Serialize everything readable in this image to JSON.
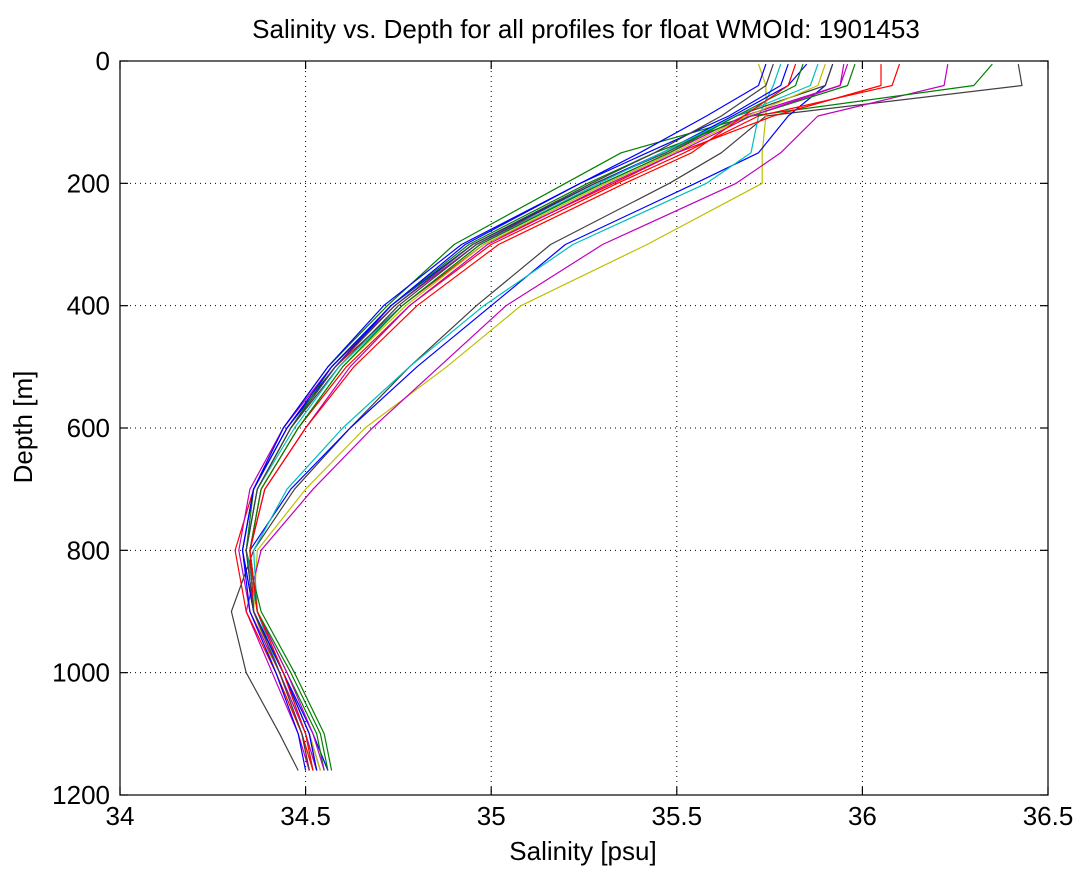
{
  "chart_data": {
    "type": "line",
    "title": "Salinity vs. Depth for all profiles for float WMOId: 1901453",
    "xlabel": "Salinity [psu]",
    "ylabel": "Depth [m]",
    "xlim": [
      34,
      36.5
    ],
    "ylim": [
      0,
      1200
    ],
    "y_reversed": true,
    "grid": true,
    "grid_style": "dotted",
    "legend": "none",
    "x_tick_labels": [
      "34",
      "34.5",
      "35",
      "35.5",
      "36",
      "36.5"
    ],
    "y_tick_labels": [
      "0",
      "200",
      "400",
      "600",
      "800",
      "1000",
      "1200"
    ],
    "x_ticks": [
      34,
      34.5,
      35,
      35.5,
      36,
      36.5
    ],
    "y_ticks": [
      0,
      200,
      400,
      600,
      800,
      1000,
      1200
    ],
    "colors": [
      "#0000ff",
      "#008000",
      "#ff0000",
      "#00bfbf",
      "#bf00bf",
      "#bfbf00",
      "#404040"
    ],
    "depths": [
      5,
      40,
      90,
      150,
      200,
      300,
      400,
      500,
      600,
      700,
      800,
      900,
      1000,
      1100,
      1160
    ],
    "series": [
      {
        "color": "#404040",
        "values": [
          36.42,
          36.43,
          35.74,
          35.62,
          35.48,
          35.16,
          34.96,
          34.78,
          34.62,
          34.47,
          34.36,
          34.3,
          34.34,
          34.43,
          34.48
        ]
      },
      {
        "color": "#bfbf00",
        "values": [
          35.72,
          35.74,
          35.74,
          35.73,
          35.73,
          35.42,
          35.08,
          34.88,
          34.66,
          34.5,
          34.37,
          34.36,
          34.42,
          34.49,
          34.52
        ]
      },
      {
        "color": "#bf00bf",
        "values": [
          36.23,
          36.22,
          35.88,
          35.78,
          35.66,
          35.3,
          35.04,
          34.86,
          34.68,
          34.52,
          34.38,
          34.34,
          34.41,
          34.48,
          34.51
        ]
      },
      {
        "color": "#0000ff",
        "values": [
          35.92,
          35.9,
          35.8,
          35.72,
          35.55,
          35.2,
          35.0,
          34.8,
          34.62,
          34.46,
          34.35,
          34.36,
          34.44,
          34.52,
          34.56
        ]
      },
      {
        "color": "#00bfbf",
        "values": [
          35.78,
          35.76,
          35.72,
          35.7,
          35.58,
          35.22,
          34.98,
          34.78,
          34.6,
          34.45,
          34.36,
          34.37,
          34.43,
          34.5,
          34.53
        ]
      },
      {
        "color": "#008000",
        "values": [
          36.35,
          36.3,
          35.7,
          35.35,
          35.2,
          34.9,
          34.72,
          34.56,
          34.44,
          34.36,
          34.34,
          34.38,
          34.47,
          34.55,
          34.57
        ]
      },
      {
        "color": "#ff0000",
        "values": [
          36.05,
          36.05,
          35.76,
          35.5,
          35.33,
          34.98,
          34.76,
          34.58,
          34.45,
          34.36,
          34.31,
          34.34,
          34.42,
          34.49,
          34.52
        ]
      },
      {
        "color": "#bf00bf",
        "values": [
          35.95,
          35.94,
          35.68,
          35.48,
          35.3,
          34.96,
          34.74,
          34.57,
          34.44,
          34.35,
          34.32,
          34.35,
          34.43,
          34.5,
          34.53
        ]
      },
      {
        "color": "#0000ff",
        "values": [
          35.85,
          35.8,
          35.65,
          35.46,
          35.28,
          34.95,
          34.73,
          34.58,
          34.45,
          34.36,
          34.33,
          34.36,
          34.44,
          34.51,
          34.54
        ]
      },
      {
        "color": "#404040",
        "values": [
          35.92,
          35.9,
          35.66,
          35.47,
          35.28,
          34.96,
          34.75,
          34.59,
          34.46,
          34.37,
          34.34,
          34.36,
          34.44,
          34.51,
          34.53
        ]
      },
      {
        "color": "#008000",
        "values": [
          35.98,
          35.96,
          35.7,
          35.44,
          35.26,
          34.94,
          34.73,
          34.57,
          34.46,
          34.37,
          34.34,
          34.37,
          34.45,
          34.53,
          34.55
        ]
      },
      {
        "color": "#bfbf00",
        "values": [
          35.9,
          35.88,
          35.69,
          35.49,
          35.31,
          34.98,
          34.77,
          34.6,
          34.48,
          34.38,
          34.35,
          34.37,
          34.44,
          34.51,
          34.54
        ]
      },
      {
        "color": "#00bfbf",
        "values": [
          35.88,
          35.86,
          35.66,
          35.46,
          35.29,
          34.97,
          34.76,
          34.59,
          34.47,
          34.37,
          34.34,
          34.37,
          34.44,
          34.5,
          34.52
        ]
      },
      {
        "color": "#ff0000",
        "values": [
          36.1,
          36.08,
          35.72,
          35.52,
          35.34,
          35.0,
          34.78,
          34.61,
          34.48,
          34.38,
          34.35,
          34.36,
          34.43,
          34.49,
          34.51
        ]
      },
      {
        "color": "#0000ff",
        "values": [
          35.8,
          35.78,
          35.64,
          35.42,
          35.24,
          34.92,
          34.71,
          34.56,
          34.44,
          34.36,
          34.33,
          34.36,
          34.44,
          34.51,
          34.53
        ]
      },
      {
        "color": "#bf00bf",
        "values": [
          35.96,
          35.94,
          35.7,
          35.5,
          35.32,
          34.99,
          34.78,
          34.62,
          34.5,
          34.39,
          34.35,
          34.37,
          34.45,
          34.52,
          34.55
        ]
      },
      {
        "color": "#008000",
        "values": [
          35.84,
          35.82,
          35.66,
          35.48,
          35.3,
          34.97,
          34.76,
          34.6,
          34.48,
          34.38,
          34.35,
          34.37,
          34.46,
          34.54,
          34.56
        ]
      },
      {
        "color": "#404040",
        "values": [
          35.76,
          35.74,
          35.62,
          35.44,
          35.27,
          34.95,
          34.74,
          34.58,
          34.46,
          34.37,
          34.34,
          34.36,
          34.43,
          34.49,
          34.51
        ]
      },
      {
        "color": "#0000ff",
        "values": [
          35.74,
          35.72,
          35.58,
          35.4,
          35.24,
          34.93,
          34.73,
          34.57,
          34.45,
          34.36,
          34.33,
          34.35,
          34.42,
          34.48,
          34.5
        ]
      },
      {
        "color": "#ff0000",
        "values": [
          35.82,
          35.8,
          35.68,
          35.54,
          35.36,
          35.02,
          34.8,
          34.63,
          34.5,
          34.39,
          34.35,
          34.37,
          34.44,
          34.5,
          34.52
        ]
      }
    ]
  }
}
